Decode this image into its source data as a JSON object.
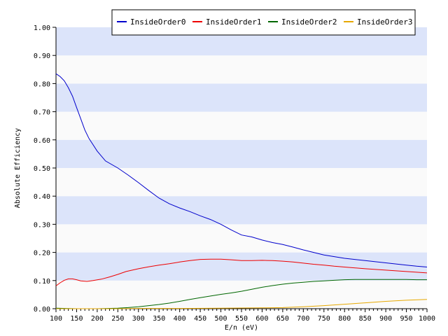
{
  "chart_data": {
    "type": "line",
    "title": "",
    "xlabel": "E/n (eV)",
    "ylabel": "Absolute Efficiency",
    "xlim": [
      100,
      1000
    ],
    "ylim": [
      0,
      1
    ],
    "x_ticks": [
      "100",
      "150",
      "200",
      "250",
      "300",
      "350",
      "400",
      "450",
      "500",
      "550",
      "600",
      "650",
      "700",
      "750",
      "800",
      "850",
      "900",
      "950",
      "1000"
    ],
    "y_ticks": [
      "0.00",
      "0.10",
      "0.20",
      "0.30",
      "0.40",
      "0.50",
      "0.60",
      "0.70",
      "0.80",
      "0.90",
      "1.00"
    ],
    "grid": "alternating horizontal bands",
    "band_color": "#dce4fa",
    "legend_position": "top",
    "series": [
      {
        "name": "InsideOrder0",
        "color": "#0000cc",
        "points": [
          [
            100,
            0.835
          ],
          [
            110,
            0.825
          ],
          [
            120,
            0.81
          ],
          [
            130,
            0.785
          ],
          [
            140,
            0.755
          ],
          [
            150,
            0.715
          ],
          [
            160,
            0.675
          ],
          [
            170,
            0.635
          ],
          [
            180,
            0.605
          ],
          [
            200,
            0.56
          ],
          [
            220,
            0.525
          ],
          [
            250,
            0.5
          ],
          [
            275,
            0.475
          ],
          [
            300,
            0.448
          ],
          [
            325,
            0.42
          ],
          [
            350,
            0.393
          ],
          [
            375,
            0.373
          ],
          [
            400,
            0.358
          ],
          [
            425,
            0.345
          ],
          [
            450,
            0.33
          ],
          [
            475,
            0.317
          ],
          [
            500,
            0.3
          ],
          [
            525,
            0.28
          ],
          [
            550,
            0.262
          ],
          [
            575,
            0.255
          ],
          [
            600,
            0.244
          ],
          [
            625,
            0.235
          ],
          [
            650,
            0.228
          ],
          [
            675,
            0.219
          ],
          [
            700,
            0.209
          ],
          [
            725,
            0.2
          ],
          [
            750,
            0.191
          ],
          [
            775,
            0.185
          ],
          [
            800,
            0.179
          ],
          [
            825,
            0.175
          ],
          [
            850,
            0.171
          ],
          [
            875,
            0.167
          ],
          [
            900,
            0.163
          ],
          [
            925,
            0.159
          ],
          [
            950,
            0.155
          ],
          [
            975,
            0.151
          ],
          [
            1000,
            0.148
          ]
        ]
      },
      {
        "name": "InsideOrder1",
        "color": "#ee0000",
        "points": [
          [
            100,
            0.081
          ],
          [
            110,
            0.092
          ],
          [
            120,
            0.101
          ],
          [
            130,
            0.106
          ],
          [
            140,
            0.106
          ],
          [
            150,
            0.103
          ],
          [
            160,
            0.099
          ],
          [
            175,
            0.097
          ],
          [
            190,
            0.1
          ],
          [
            210,
            0.105
          ],
          [
            230,
            0.113
          ],
          [
            250,
            0.122
          ],
          [
            270,
            0.132
          ],
          [
            300,
            0.142
          ],
          [
            325,
            0.149
          ],
          [
            350,
            0.155
          ],
          [
            375,
            0.16
          ],
          [
            400,
            0.166
          ],
          [
            425,
            0.171
          ],
          [
            450,
            0.175
          ],
          [
            475,
            0.176
          ],
          [
            500,
            0.176
          ],
          [
            525,
            0.174
          ],
          [
            550,
            0.171
          ],
          [
            575,
            0.171
          ],
          [
            600,
            0.172
          ],
          [
            625,
            0.171
          ],
          [
            650,
            0.169
          ],
          [
            675,
            0.166
          ],
          [
            700,
            0.162
          ],
          [
            725,
            0.158
          ],
          [
            750,
            0.155
          ],
          [
            775,
            0.151
          ],
          [
            800,
            0.148
          ],
          [
            850,
            0.142
          ],
          [
            900,
            0.137
          ],
          [
            950,
            0.132
          ],
          [
            1000,
            0.127
          ]
        ]
      },
      {
        "name": "InsideOrder2",
        "color": "#006600",
        "points": [
          [
            100,
            0.002
          ],
          [
            150,
            0.0
          ],
          [
            200,
            0.0
          ],
          [
            250,
            0.002
          ],
          [
            275,
            0.004
          ],
          [
            300,
            0.007
          ],
          [
            325,
            0.011
          ],
          [
            350,
            0.015
          ],
          [
            375,
            0.02
          ],
          [
            400,
            0.026
          ],
          [
            425,
            0.033
          ],
          [
            450,
            0.039
          ],
          [
            475,
            0.045
          ],
          [
            500,
            0.051
          ],
          [
            525,
            0.056
          ],
          [
            550,
            0.062
          ],
          [
            575,
            0.069
          ],
          [
            600,
            0.076
          ],
          [
            625,
            0.082
          ],
          [
            650,
            0.087
          ],
          [
            675,
            0.091
          ],
          [
            700,
            0.094
          ],
          [
            725,
            0.097
          ],
          [
            750,
            0.099
          ],
          [
            775,
            0.101
          ],
          [
            800,
            0.103
          ],
          [
            825,
            0.104
          ],
          [
            850,
            0.104
          ],
          [
            875,
            0.104
          ],
          [
            900,
            0.104
          ],
          [
            925,
            0.104
          ],
          [
            950,
            0.104
          ],
          [
            975,
            0.103
          ],
          [
            1000,
            0.103
          ]
        ]
      },
      {
        "name": "InsideOrder3",
        "color": "#e6a800",
        "points": [
          [
            100,
            0.0
          ],
          [
            250,
            0.0
          ],
          [
            300,
            0.001
          ],
          [
            400,
            0.001
          ],
          [
            500,
            0.002
          ],
          [
            600,
            0.003
          ],
          [
            650,
            0.004
          ],
          [
            700,
            0.007
          ],
          [
            750,
            0.011
          ],
          [
            800,
            0.016
          ],
          [
            850,
            0.021
          ],
          [
            900,
            0.026
          ],
          [
            950,
            0.03
          ],
          [
            1000,
            0.033
          ]
        ]
      }
    ]
  }
}
